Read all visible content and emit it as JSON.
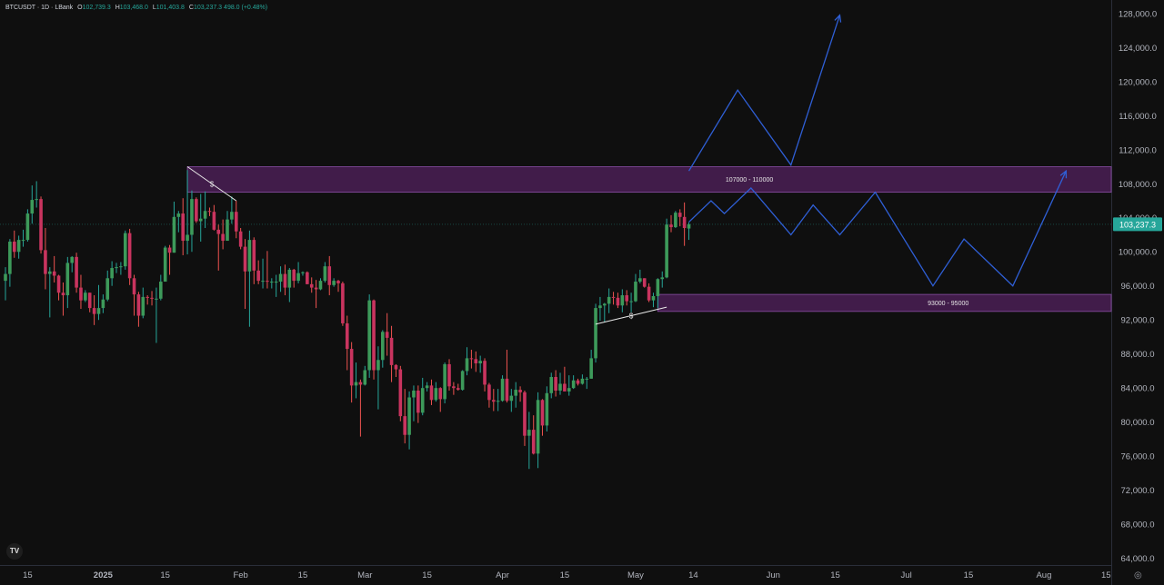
{
  "header": {
    "symbol": "BTCUSDT · 1D · LBank",
    "open_key": "O",
    "open": "102,739.3",
    "high_key": "H",
    "high": "103,468.0",
    "low_key": "L",
    "low": "101,403.8",
    "close_key": "C",
    "close": "103,237.3",
    "change": "498.0 (+0.48%)"
  },
  "price_tag": "103,237.3",
  "logo_text": "TV",
  "settings_icon": "gear-icon",
  "colors": {
    "up": "#26a69a",
    "down": "#ef5350",
    "up_body": "#3d9a5a",
    "down_body": "#c9345f",
    "zone": "#4a1f55",
    "zone_border": "#8a4fa5",
    "projection": "#2f5fd6",
    "price_line": "#26a69a"
  },
  "chart_data": {
    "type": "candlestick",
    "title": "",
    "x_axis": {
      "tick_labels": [
        "15",
        "2025",
        "15",
        "Feb",
        "15",
        "Mar",
        "15",
        "Apr",
        "15",
        "May",
        "14",
        "Jun",
        "15",
        "Jul",
        "15",
        "Aug",
        "15"
      ]
    },
    "y_axis": {
      "range": [
        63000,
        130000
      ],
      "tick_labels": [
        "128,000.0",
        "124,000.0",
        "120,000.0",
        "116,000.0",
        "112,000.0",
        "108,000.0",
        "104,000.0",
        "100,000.0",
        "96,000.0",
        "92,000.0",
        "88,000.0",
        "84,000.0",
        "80,000.0",
        "76,000.0",
        "72,000.0",
        "68,000.0",
        "64,000.0"
      ]
    },
    "last_price": 103237.3,
    "zones": [
      {
        "label": "107000 - 110000",
        "low": 107000,
        "high": 110000,
        "start": "2025-01-20"
      },
      {
        "label": "93000 - 95000",
        "low": 93000,
        "high": 95000,
        "start": "2025-05-06"
      }
    ],
    "annotations": [
      {
        "label": "$",
        "from": [
          "2025-01-20",
          110000
        ],
        "to": [
          "2025-01-31",
          106000
        ]
      },
      {
        "label": "$",
        "from": [
          "2025-04-22",
          91500
        ],
        "to": [
          "2025-05-08",
          93500
        ]
      }
    ],
    "projections": [
      {
        "points": [
          [
            "2025-05-13",
            109500
          ],
          [
            "2025-05-24",
            119000
          ],
          [
            "2025-06-05",
            110200
          ],
          [
            "2025-06-16",
            127800
          ]
        ],
        "arrow": true
      },
      {
        "points": [
          [
            "2025-05-13",
            103500
          ],
          [
            "2025-05-18",
            106000
          ],
          [
            "2025-05-21",
            104500
          ],
          [
            "2025-05-27",
            107500
          ],
          [
            "2025-06-05",
            102000
          ],
          [
            "2025-06-10",
            105500
          ],
          [
            "2025-06-16",
            102000
          ],
          [
            "2025-06-24",
            107000
          ],
          [
            "2025-07-07",
            96000
          ],
          [
            "2025-07-14",
            101500
          ],
          [
            "2025-07-25",
            96000
          ],
          [
            "2025-08-06",
            109500
          ]
        ],
        "arrow": true
      }
    ],
    "candles": [
      [
        "2024-12-10",
        96600,
        98200,
        94300,
        97400
      ],
      [
        "2024-12-11",
        97400,
        101500,
        95900,
        101200
      ],
      [
        "2024-12-12",
        101200,
        102500,
        99300,
        100000
      ],
      [
        "2024-12-13",
        100000,
        101900,
        99200,
        101400
      ],
      [
        "2024-12-14",
        101400,
        102600,
        100600,
        101400
      ],
      [
        "2024-12-15",
        101400,
        105000,
        101200,
        104500
      ],
      [
        "2024-12-16",
        104500,
        107800,
        103300,
        106100
      ],
      [
        "2024-12-17",
        106100,
        108300,
        105200,
        106200
      ],
      [
        "2024-12-18",
        106200,
        106500,
        99800,
        100200
      ],
      [
        "2024-12-19",
        100200,
        102800,
        95600,
        97400
      ],
      [
        "2024-12-20",
        97400,
        98200,
        92300,
        97700
      ],
      [
        "2024-12-21",
        97700,
        99500,
        96400,
        97200
      ],
      [
        "2024-12-22",
        97200,
        97300,
        94300,
        95200
      ],
      [
        "2024-12-23",
        95200,
        96400,
        92500,
        94900
      ],
      [
        "2024-12-24",
        94900,
        99400,
        93400,
        98700
      ],
      [
        "2024-12-25",
        98700,
        99500,
        97600,
        99400
      ],
      [
        "2024-12-26",
        99400,
        99900,
        95200,
        95800
      ],
      [
        "2024-12-27",
        95800,
        97300,
        93300,
        94300
      ],
      [
        "2024-12-28",
        94300,
        95500,
        94100,
        95200
      ],
      [
        "2024-12-29",
        95200,
        95200,
        92900,
        93400
      ],
      [
        "2024-12-30",
        93400,
        94900,
        91400,
        92700
      ],
      [
        "2024-12-31",
        92700,
        96100,
        92000,
        93400
      ],
      [
        "2025-01-01",
        93400,
        95000,
        92800,
        94400
      ],
      [
        "2025-01-02",
        94400,
        97800,
        94200,
        96900
      ],
      [
        "2025-01-03",
        96900,
        98900,
        96000,
        98100
      ],
      [
        "2025-01-04",
        98100,
        98700,
        97500,
        98200
      ],
      [
        "2025-01-05",
        98200,
        98800,
        97300,
        98300
      ],
      [
        "2025-01-06",
        98300,
        102500,
        97900,
        102200
      ],
      [
        "2025-01-07",
        102200,
        102700,
        96100,
        96900
      ],
      [
        "2025-01-08",
        96900,
        97300,
        92500,
        95000
      ],
      [
        "2025-01-09",
        95000,
        95300,
        91200,
        92500
      ],
      [
        "2025-01-10",
        92500,
        95800,
        92200,
        94700
      ],
      [
        "2025-01-11",
        94700,
        94900,
        93800,
        94600
      ],
      [
        "2025-01-12",
        94600,
        95400,
        93700,
        94500
      ],
      [
        "2025-01-13",
        94500,
        95800,
        89300,
        94500
      ],
      [
        "2025-01-14",
        94500,
        97300,
        94300,
        96500
      ],
      [
        "2025-01-15",
        96500,
        100700,
        96500,
        100500
      ],
      [
        "2025-01-16",
        100500,
        100800,
        97300,
        99900
      ],
      [
        "2025-01-17",
        99900,
        105900,
        99900,
        104100
      ],
      [
        "2025-01-18",
        104100,
        104800,
        102300,
        104500
      ],
      [
        "2025-01-19",
        104500,
        106300,
        99600,
        101300
      ],
      [
        "2025-01-20",
        101300,
        109600,
        99700,
        102000
      ],
      [
        "2025-01-21",
        102000,
        107200,
        100000,
        106200
      ],
      [
        "2025-01-22",
        106200,
        106400,
        103400,
        103600
      ],
      [
        "2025-01-23",
        103600,
        106800,
        101200,
        103900
      ],
      [
        "2025-01-24",
        103900,
        107100,
        102800,
        104800
      ],
      [
        "2025-01-25",
        104800,
        105200,
        104200,
        104700
      ],
      [
        "2025-01-26",
        104700,
        105500,
        102500,
        102600
      ],
      [
        "2025-01-27",
        102600,
        103200,
        97800,
        102100
      ],
      [
        "2025-01-28",
        102100,
        103800,
        100300,
        101300
      ],
      [
        "2025-01-29",
        101300,
        104800,
        101300,
        103800
      ],
      [
        "2025-01-30",
        103800,
        106500,
        103300,
        104700
      ],
      [
        "2025-01-31",
        104700,
        106000,
        101600,
        102400
      ],
      [
        "2025-02-01",
        102400,
        102800,
        100300,
        100600
      ],
      [
        "2025-02-02",
        100600,
        101500,
        93300,
        97700
      ],
      [
        "2025-02-03",
        97700,
        102500,
        91200,
        101400
      ],
      [
        "2025-02-04",
        101400,
        101700,
        96200,
        97800
      ],
      [
        "2025-02-05",
        97800,
        99000,
        96200,
        96600
      ],
      [
        "2025-02-06",
        96600,
        99200,
        95700,
        96600
      ],
      [
        "2025-02-07",
        96600,
        100100,
        95700,
        96500
      ],
      [
        "2025-02-08",
        96500,
        96900,
        95700,
        96500
      ],
      [
        "2025-02-09",
        96500,
        97300,
        94700,
        96500
      ],
      [
        "2025-02-10",
        96500,
        98300,
        95300,
        97400
      ],
      [
        "2025-02-11",
        97400,
        98500,
        94900,
        95800
      ],
      [
        "2025-02-12",
        95800,
        98100,
        94100,
        97900
      ],
      [
        "2025-02-13",
        97900,
        98000,
        95800,
        96600
      ],
      [
        "2025-02-14",
        96600,
        98800,
        96300,
        97500
      ],
      [
        "2025-02-15",
        97500,
        97700,
        97200,
        97600
      ],
      [
        "2025-02-16",
        97600,
        97700,
        96200,
        96200
      ],
      [
        "2025-02-17",
        96200,
        97000,
        95200,
        95800
      ],
      [
        "2025-02-18",
        95800,
        96700,
        93400,
        95600
      ],
      [
        "2025-02-19",
        95600,
        96900,
        95500,
        96600
      ],
      [
        "2025-02-20",
        96600,
        98800,
        96400,
        98300
      ],
      [
        "2025-02-21",
        98300,
        99500,
        94900,
        96100
      ],
      [
        "2025-02-22",
        96100,
        96900,
        95900,
        96600
      ],
      [
        "2025-02-23",
        96600,
        96700,
        95300,
        96300
      ],
      [
        "2025-02-24",
        96300,
        96500,
        91300,
        91600
      ],
      [
        "2025-02-25",
        91600,
        92500,
        86100,
        88600
      ],
      [
        "2025-02-26",
        88600,
        89400,
        82300,
        84300
      ],
      [
        "2025-02-27",
        84300,
        87000,
        82800,
        84700
      ],
      [
        "2025-02-28",
        84700,
        85000,
        78300,
        84400
      ],
      [
        "2025-03-01",
        84400,
        86600,
        84300,
        86100
      ],
      [
        "2025-03-02",
        86100,
        95000,
        85200,
        94300
      ],
      [
        "2025-03-03",
        94300,
        94400,
        85000,
        86100
      ],
      [
        "2025-03-04",
        86100,
        88900,
        81500,
        87300
      ],
      [
        "2025-03-05",
        87300,
        90800,
        86400,
        90600
      ],
      [
        "2025-03-06",
        90600,
        92800,
        87800,
        89900
      ],
      [
        "2025-03-07",
        89900,
        91300,
        84700,
        86700
      ],
      [
        "2025-03-08",
        86700,
        86800,
        85300,
        86200
      ],
      [
        "2025-03-09",
        86200,
        86600,
        80100,
        80700
      ],
      [
        "2025-03-10",
        80700,
        83900,
        77500,
        78500
      ],
      [
        "2025-03-11",
        78500,
        83600,
        76800,
        82900
      ],
      [
        "2025-03-12",
        82900,
        84300,
        80100,
        83700
      ],
      [
        "2025-03-13",
        83700,
        84300,
        79900,
        81100
      ],
      [
        "2025-03-14",
        81100,
        85200,
        80800,
        84000
      ],
      [
        "2025-03-15",
        84000,
        84700,
        83600,
        84300
      ],
      [
        "2025-03-16",
        84300,
        85000,
        82000,
        82600
      ],
      [
        "2025-03-17",
        82600,
        84700,
        82400,
        84000
      ],
      [
        "2025-03-18",
        84000,
        84100,
        81200,
        82700
      ],
      [
        "2025-03-19",
        82700,
        87000,
        82200,
        86800
      ],
      [
        "2025-03-20",
        86800,
        87400,
        83700,
        84200
      ],
      [
        "2025-03-21",
        84200,
        84700,
        83200,
        84000
      ],
      [
        "2025-03-22",
        84000,
        84500,
        83700,
        83800
      ],
      [
        "2025-03-23",
        83800,
        86100,
        83700,
        86000
      ],
      [
        "2025-03-24",
        86000,
        88800,
        85500,
        87500
      ],
      [
        "2025-03-25",
        87500,
        88500,
        86300,
        87400
      ],
      [
        "2025-03-26",
        87400,
        88300,
        85900,
        86900
      ],
      [
        "2025-03-27",
        86900,
        87800,
        85800,
        87200
      ],
      [
        "2025-03-28",
        87200,
        87500,
        83600,
        84400
      ],
      [
        "2025-03-29",
        84400,
        84600,
        81700,
        82600
      ],
      [
        "2025-03-30",
        82600,
        83900,
        81300,
        82400
      ],
      [
        "2025-03-31",
        82400,
        83900,
        81300,
        82500
      ],
      [
        "2025-04-01",
        82500,
        85500,
        82400,
        85100
      ],
      [
        "2025-04-02",
        85100,
        88500,
        82300,
        82500
      ],
      [
        "2025-04-03",
        82500,
        83900,
        81200,
        83100
      ],
      [
        "2025-04-04",
        83100,
        84700,
        81700,
        83800
      ],
      [
        "2025-04-05",
        83800,
        84200,
        82400,
        83500
      ],
      [
        "2025-04-06",
        83500,
        83700,
        77200,
        78400
      ],
      [
        "2025-04-07",
        78400,
        81200,
        74500,
        79100
      ],
      [
        "2025-04-08",
        79100,
        80800,
        76200,
        76300
      ],
      [
        "2025-04-09",
        76300,
        83500,
        74600,
        82600
      ],
      [
        "2025-04-10",
        82600,
        82700,
        78400,
        79600
      ],
      [
        "2025-04-11",
        79600,
        84200,
        78900,
        83400
      ],
      [
        "2025-04-12",
        83400,
        85800,
        82800,
        85300
      ],
      [
        "2025-04-13",
        85300,
        86100,
        83000,
        83700
      ],
      [
        "2025-04-14",
        83700,
        85800,
        83200,
        84500
      ],
      [
        "2025-04-15",
        84500,
        86500,
        83600,
        83600
      ],
      [
        "2025-04-16",
        83600,
        85500,
        83100,
        84000
      ],
      [
        "2025-04-17",
        84000,
        85500,
        83900,
        84900
      ],
      [
        "2025-04-18",
        84900,
        85100,
        84300,
        84500
      ],
      [
        "2025-04-19",
        84500,
        85600,
        84400,
        85100
      ],
      [
        "2025-04-20",
        85100,
        85300,
        83900,
        85100
      ],
      [
        "2025-04-21",
        85100,
        88500,
        85100,
        87500
      ],
      [
        "2025-04-22",
        87500,
        93900,
        87000,
        93400
      ],
      [
        "2025-04-23",
        93400,
        94700,
        91900,
        93700
      ],
      [
        "2025-04-24",
        93700,
        94000,
        91700,
        93900
      ],
      [
        "2025-04-25",
        93900,
        95700,
        92800,
        94700
      ],
      [
        "2025-04-26",
        94700,
        95300,
        93800,
        94600
      ],
      [
        "2025-04-27",
        94600,
        95200,
        93400,
        93700
      ],
      [
        "2025-04-28",
        93700,
        95600,
        92900,
        94900
      ],
      [
        "2025-04-29",
        94900,
        95500,
        93700,
        94200
      ],
      [
        "2025-04-30",
        94200,
        95200,
        92900,
        94200
      ],
      [
        "2025-05-01",
        94200,
        97400,
        94100,
        96500
      ],
      [
        "2025-05-02",
        96500,
        97900,
        96300,
        96900
      ],
      [
        "2025-05-03",
        96900,
        96900,
        95800,
        95900
      ],
      [
        "2025-05-04",
        95900,
        96300,
        94100,
        94300
      ],
      [
        "2025-05-05",
        94300,
        95200,
        93500,
        94800
      ],
      [
        "2025-05-06",
        94800,
        96900,
        93400,
        96800
      ],
      [
        "2025-05-07",
        96800,
        97700,
        95800,
        97000
      ],
      [
        "2025-05-08",
        97000,
        103900,
        96900,
        103200
      ],
      [
        "2025-05-09",
        103200,
        104300,
        102300,
        102900
      ],
      [
        "2025-05-10",
        102900,
        104800,
        102800,
        104600
      ],
      [
        "2025-05-11",
        104600,
        105000,
        103000,
        104100
      ],
      [
        "2025-05-12",
        104100,
        105800,
        100700,
        102800
      ],
      [
        "2025-05-13",
        102739.3,
        103468.0,
        101403.8,
        103237.3
      ]
    ]
  }
}
